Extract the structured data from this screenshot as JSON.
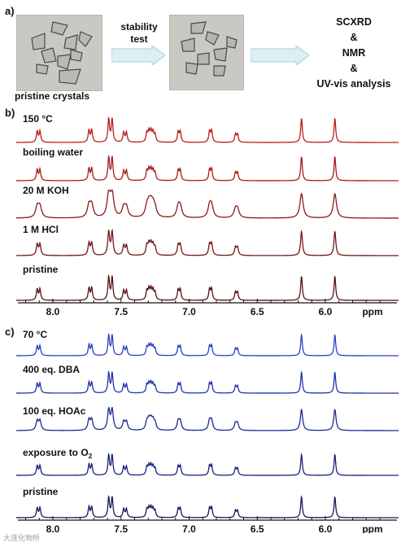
{
  "panel_a": {
    "label": "a)",
    "photo1_caption": "pristine crystals",
    "arrow1_label_line1": "stability",
    "arrow1_label_line2": "test",
    "analysis_lines": [
      "SCXRD",
      "&",
      "NMR",
      "&",
      "UV-vis analysis"
    ]
  },
  "panel_b": {
    "label": "b)",
    "traces": [
      "150 °C",
      "boiling water",
      "20 M KOH",
      "1 M HCl",
      "pristine"
    ],
    "trace_colors": [
      "#b81e1e",
      "#a81a1a",
      "#8e1717",
      "#741414",
      "#561010"
    ],
    "x_ticks": [
      "8.0",
      "7.5",
      "7.0",
      "6.5",
      "6.0"
    ],
    "x_unit": "ppm"
  },
  "panel_c": {
    "label": "c)",
    "traces": [
      "70 °C",
      "400 eq. DBA",
      "100 eq. HOAc",
      "exposure to O",
      "pristine"
    ],
    "trace_sub": [
      "",
      "",
      "",
      "2",
      ""
    ],
    "trace_colors": [
      "#2a3fc4",
      "#1f32ab",
      "#1a2992",
      "#15207a",
      "#141a5a"
    ],
    "x_ticks": [
      "8.0",
      "7.5",
      "7.0",
      "6.5",
      "6.0"
    ],
    "x_unit": "ppm"
  },
  "watermark": "大连化物所"
}
